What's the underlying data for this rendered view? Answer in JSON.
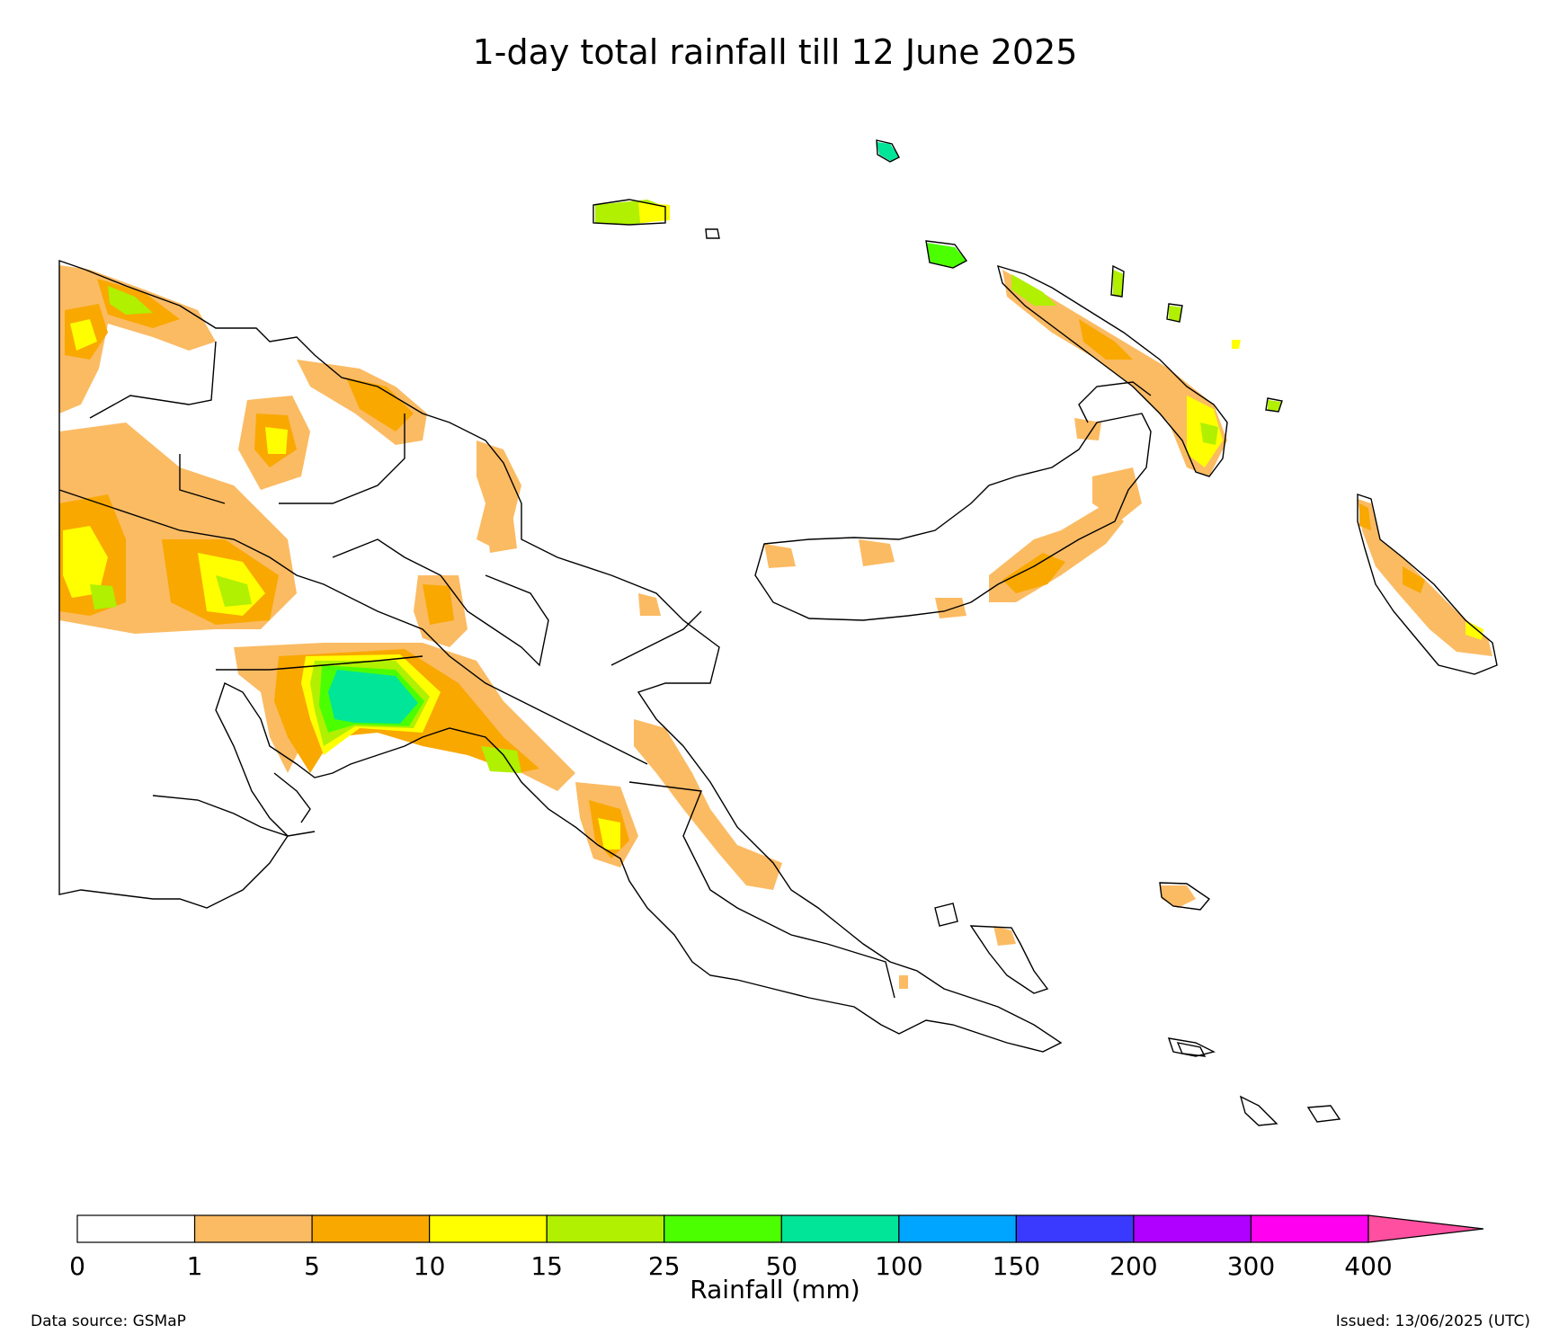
{
  "title": "1-day total rainfall till 12 June 2025",
  "colorbar": {
    "label": "Rainfall (mm)",
    "ticks": [
      "0",
      "1",
      "5",
      "10",
      "15",
      "25",
      "50",
      "100",
      "150",
      "200",
      "300",
      "400"
    ],
    "colors": [
      "#ffffff",
      "#fbbb63",
      "#f9a800",
      "#ffff00",
      "#b0f000",
      "#4cff00",
      "#00e598",
      "#00a5ff",
      "#3a3aff",
      "#b000ff",
      "#ff00f0"
    ],
    "extend_color": "#ff4fa0"
  },
  "footer": {
    "source": "Data source: GSMaP",
    "issued": "Issued: 13/06/2025 (UTC)"
  }
}
